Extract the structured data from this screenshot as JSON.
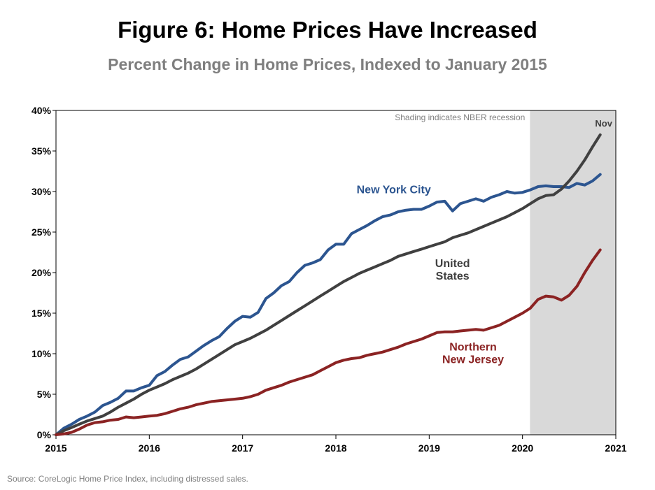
{
  "title": "Figure 6: Home Prices Have Increased",
  "subtitle": "Percent Change in Home Prices, Indexed to January 2015",
  "source": "Source: CoreLogic Home Price Index, including distressed sales.",
  "chart_data": {
    "type": "line",
    "title": "Figure 6: Home Prices Have Increased",
    "subtitle": "Percent Change in Home Prices, Indexed to January 2015",
    "xlabel": "",
    "ylabel": "",
    "xlim": [
      2015,
      2021
    ],
    "ylim": [
      0,
      40
    ],
    "x_ticks": [
      2015,
      2016,
      2017,
      2018,
      2019,
      2020,
      2021
    ],
    "x_tick_labels": [
      "2015",
      "2016",
      "2017",
      "2018",
      "2019",
      "2020",
      "2021"
    ],
    "y_ticks": [
      0,
      5,
      10,
      15,
      20,
      25,
      30,
      35,
      40
    ],
    "y_tick_labels": [
      "0%",
      "5%",
      "10%",
      "15%",
      "20%",
      "25%",
      "30%",
      "35%",
      "40%"
    ],
    "grid": false,
    "legend": "inline labels",
    "recession": {
      "start": 2020.08,
      "end": 2021.08,
      "color": "#d9d9d9",
      "label": "Shading indicates NBER recession"
    },
    "end_label": "Nov",
    "series": [
      {
        "name": "New York City",
        "label_lines": [
          "New York City"
        ],
        "color": "#2c5590",
        "label_color": "#2c5590",
        "x": [
          2015.0,
          2015.083,
          2015.167,
          2015.25,
          2015.333,
          2015.417,
          2015.5,
          2015.583,
          2015.667,
          2015.75,
          2015.833,
          2015.917,
          2016.0,
          2016.083,
          2016.167,
          2016.25,
          2016.333,
          2016.417,
          2016.5,
          2016.583,
          2016.667,
          2016.75,
          2016.833,
          2016.917,
          2017.0,
          2017.083,
          2017.167,
          2017.25,
          2017.333,
          2017.417,
          2017.5,
          2017.583,
          2017.667,
          2017.75,
          2017.833,
          2017.917,
          2018.0,
          2018.083,
          2018.167,
          2018.25,
          2018.333,
          2018.417,
          2018.5,
          2018.583,
          2018.667,
          2018.75,
          2018.833,
          2018.917,
          2019.0,
          2019.083,
          2019.167,
          2019.25,
          2019.333,
          2019.417,
          2019.5,
          2019.583,
          2019.667,
          2019.75,
          2019.833,
          2019.917,
          2020.0,
          2020.083,
          2020.167,
          2020.25,
          2020.333,
          2020.417,
          2020.5,
          2020.583,
          2020.667,
          2020.75,
          2020.833
        ],
        "values": [
          0,
          0.8,
          1.3,
          1.9,
          2.3,
          2.8,
          3.6,
          4.0,
          4.5,
          5.4,
          5.4,
          5.8,
          6.1,
          7.3,
          7.8,
          8.6,
          9.3,
          9.6,
          10.3,
          11.0,
          11.6,
          12.1,
          13.1,
          14.0,
          14.6,
          14.5,
          15.1,
          16.8,
          17.5,
          18.4,
          18.9,
          20.0,
          20.9,
          21.2,
          21.6,
          22.8,
          23.5,
          23.5,
          24.8,
          25.3,
          25.8,
          26.4,
          26.9,
          27.1,
          27.5,
          27.7,
          27.8,
          27.8,
          28.2,
          28.7,
          28.8,
          27.6,
          28.5,
          28.8,
          29.1,
          28.8,
          29.3,
          29.6,
          30.0,
          29.8,
          29.9,
          30.2,
          30.6,
          30.7,
          30.6,
          30.6,
          30.5,
          31.0,
          30.8,
          31.3,
          32.1
        ]
      },
      {
        "name": "United States",
        "label_lines": [
          "United",
          "States"
        ],
        "color": "#404040",
        "label_color": "#404040",
        "x": [
          2015.0,
          2015.083,
          2015.167,
          2015.25,
          2015.333,
          2015.417,
          2015.5,
          2015.583,
          2015.667,
          2015.75,
          2015.833,
          2015.917,
          2016.0,
          2016.083,
          2016.167,
          2016.25,
          2016.333,
          2016.417,
          2016.5,
          2016.583,
          2016.667,
          2016.75,
          2016.833,
          2016.917,
          2017.0,
          2017.083,
          2017.167,
          2017.25,
          2017.333,
          2017.417,
          2017.5,
          2017.583,
          2017.667,
          2017.75,
          2017.833,
          2017.917,
          2018.0,
          2018.083,
          2018.167,
          2018.25,
          2018.333,
          2018.417,
          2018.5,
          2018.583,
          2018.667,
          2018.75,
          2018.833,
          2018.917,
          2019.0,
          2019.083,
          2019.167,
          2019.25,
          2019.333,
          2019.417,
          2019.5,
          2019.583,
          2019.667,
          2019.75,
          2019.833,
          2019.917,
          2020.0,
          2020.083,
          2020.167,
          2020.25,
          2020.333,
          2020.417,
          2020.5,
          2020.583,
          2020.667,
          2020.75,
          2020.833
        ],
        "values": [
          0,
          0.5,
          0.9,
          1.3,
          1.7,
          2.0,
          2.3,
          2.8,
          3.4,
          3.9,
          4.4,
          5.0,
          5.5,
          5.9,
          6.3,
          6.8,
          7.2,
          7.6,
          8.1,
          8.7,
          9.3,
          9.9,
          10.5,
          11.1,
          11.5,
          11.9,
          12.4,
          12.9,
          13.5,
          14.1,
          14.7,
          15.3,
          15.9,
          16.5,
          17.1,
          17.7,
          18.3,
          18.9,
          19.4,
          19.9,
          20.3,
          20.7,
          21.1,
          21.5,
          22.0,
          22.3,
          22.6,
          22.9,
          23.2,
          23.5,
          23.8,
          24.3,
          24.6,
          24.9,
          25.3,
          25.7,
          26.1,
          26.5,
          26.9,
          27.4,
          27.9,
          28.5,
          29.1,
          29.5,
          29.6,
          30.3,
          31.3,
          32.5,
          33.9,
          35.5,
          37.0
        ]
      },
      {
        "name": "Northern New Jersey",
        "label_lines": [
          "Northern",
          "New Jersey"
        ],
        "color": "#8b2323",
        "label_color": "#8b2323",
        "x": [
          2015.0,
          2015.083,
          2015.167,
          2015.25,
          2015.333,
          2015.417,
          2015.5,
          2015.583,
          2015.667,
          2015.75,
          2015.833,
          2015.917,
          2016.0,
          2016.083,
          2016.167,
          2016.25,
          2016.333,
          2016.417,
          2016.5,
          2016.583,
          2016.667,
          2016.75,
          2016.833,
          2016.917,
          2017.0,
          2017.083,
          2017.167,
          2017.25,
          2017.333,
          2017.417,
          2017.5,
          2017.583,
          2017.667,
          2017.75,
          2017.833,
          2017.917,
          2018.0,
          2018.083,
          2018.167,
          2018.25,
          2018.333,
          2018.417,
          2018.5,
          2018.583,
          2018.667,
          2018.75,
          2018.833,
          2018.917,
          2019.0,
          2019.083,
          2019.167,
          2019.25,
          2019.333,
          2019.417,
          2019.5,
          2019.583,
          2019.667,
          2019.75,
          2019.833,
          2019.917,
          2020.0,
          2020.083,
          2020.167,
          2020.25,
          2020.333,
          2020.417,
          2020.5,
          2020.583,
          2020.667,
          2020.75,
          2020.833
        ],
        "values": [
          0,
          0.1,
          0.3,
          0.7,
          1.2,
          1.5,
          1.6,
          1.8,
          1.9,
          2.2,
          2.1,
          2.2,
          2.3,
          2.4,
          2.6,
          2.9,
          3.2,
          3.4,
          3.7,
          3.9,
          4.1,
          4.2,
          4.3,
          4.4,
          4.5,
          4.7,
          5.0,
          5.5,
          5.8,
          6.1,
          6.5,
          6.8,
          7.1,
          7.4,
          7.9,
          8.4,
          8.9,
          9.2,
          9.4,
          9.5,
          9.8,
          10.0,
          10.2,
          10.5,
          10.8,
          11.2,
          11.5,
          11.8,
          12.2,
          12.6,
          12.7,
          12.7,
          12.8,
          12.9,
          13.0,
          12.9,
          13.2,
          13.5,
          14.0,
          14.5,
          15.0,
          15.6,
          16.7,
          17.1,
          17.0,
          16.6,
          17.2,
          18.3,
          20.0,
          21.5,
          22.8
        ]
      }
    ]
  }
}
